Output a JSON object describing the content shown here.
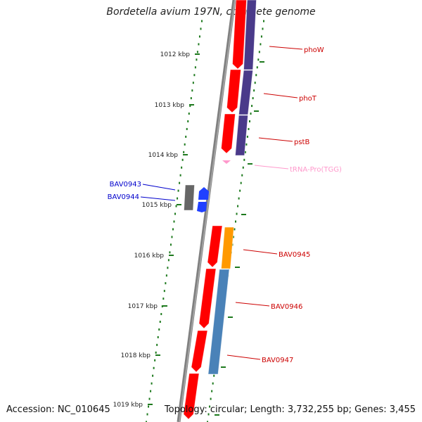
{
  "title": "Bordetella avium 197N, complete genome",
  "accession": "Accession: NC_010645",
  "summary": "Topology: circular; Length: 3,732,255 bp; Genes: 3,455",
  "colors": {
    "backbone": "#808080",
    "tick": "#1e7a1e",
    "cds": "#ff0000",
    "purple": "#4a3a8a",
    "blue_gene": "#2040ff",
    "gray_gene": "#666666",
    "orange": "#ff9900",
    "steelblue": "#4a82b8",
    "trna": "#ff99cc",
    "label_red": "#cc0000",
    "label_blue": "#0000cc"
  },
  "ticks": [
    {
      "label": "1012 kbp"
    },
    {
      "label": "1013 kbp"
    },
    {
      "label": "1014 kbp"
    },
    {
      "label": "1015 kbp"
    },
    {
      "label": "1016 kbp"
    },
    {
      "label": "1017 kbp"
    },
    {
      "label": "1018 kbp"
    },
    {
      "label": "1019 kbp"
    }
  ],
  "features": [
    {
      "label": "phoW",
      "kind": "gene"
    },
    {
      "label": "phoT",
      "kind": "gene"
    },
    {
      "label": "pstB",
      "kind": "gene"
    },
    {
      "label": "tRNA-Pro(TGG)",
      "kind": "trna"
    },
    {
      "label": "BAV0943",
      "kind": "gene-left"
    },
    {
      "label": "BAV0944",
      "kind": "gene-left"
    },
    {
      "label": "BAV0945",
      "kind": "gene"
    },
    {
      "label": "BAV0946",
      "kind": "gene"
    },
    {
      "label": "BAV0947",
      "kind": "gene"
    }
  ]
}
